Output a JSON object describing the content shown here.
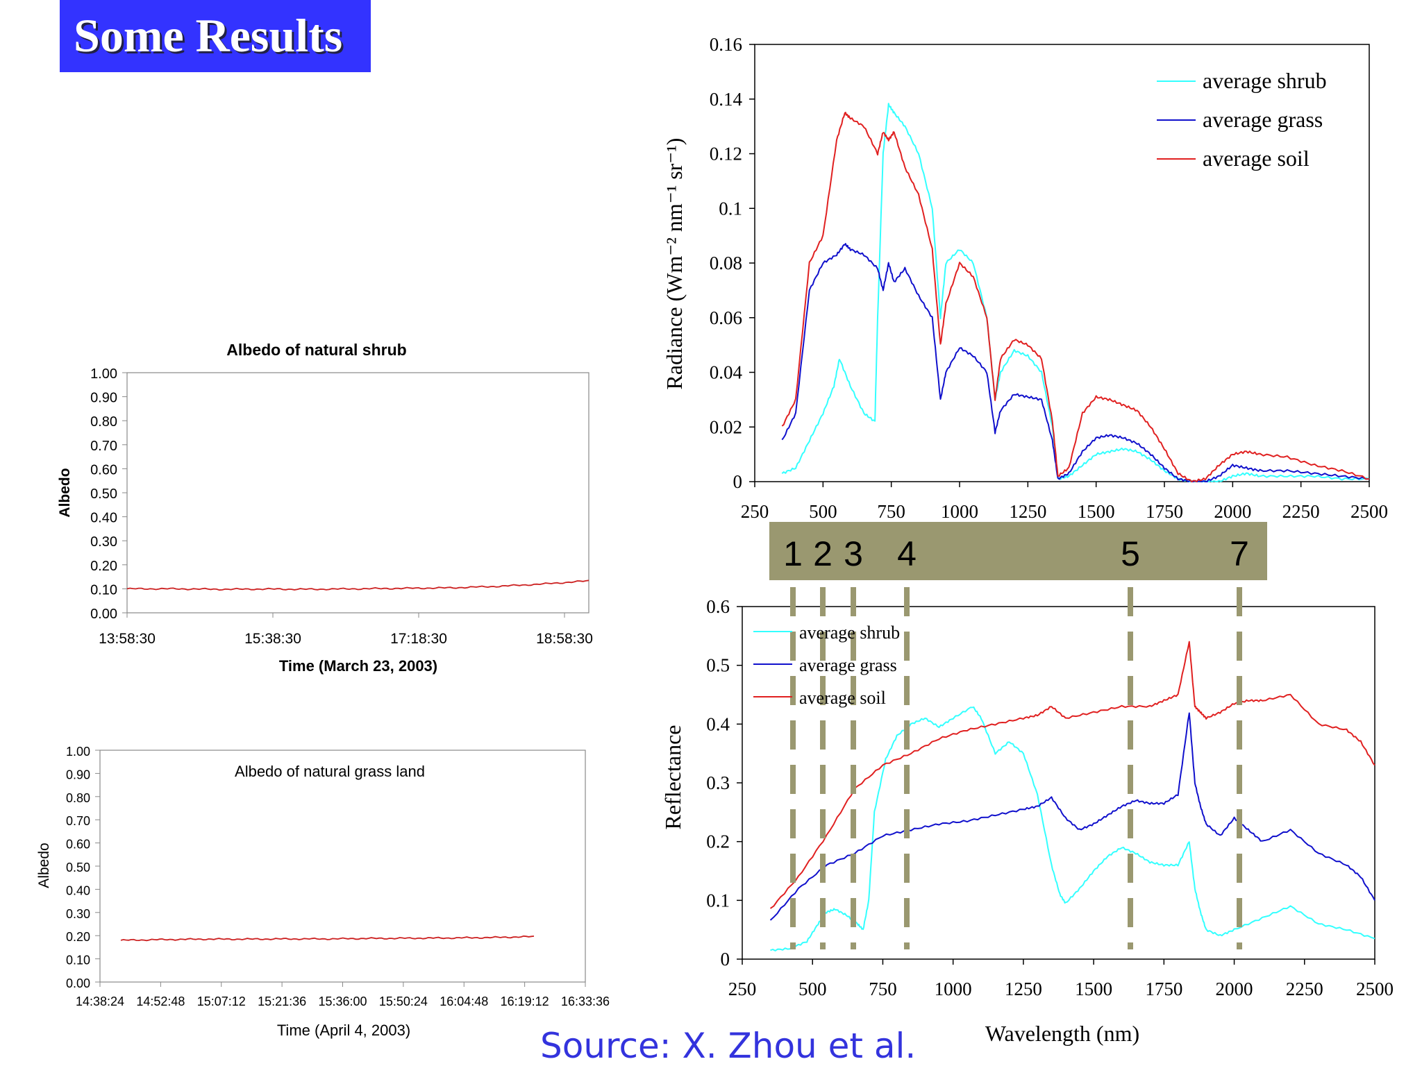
{
  "slide": {
    "title": "Some Results",
    "source": "Source: X. Zhou et al."
  },
  "colors": {
    "shrub": "#33ffff",
    "grass": "#1010cc",
    "soil": "#e02020",
    "albedo_line": "#cc2020",
    "band_bar": "#9a9870",
    "title_bg": "#3333ff"
  },
  "band_labels": [
    "1",
    "2",
    "3",
    "4",
    "5",
    "7"
  ],
  "band_centers_nm": [
    485,
    570,
    660,
    840,
    1650,
    2220
  ],
  "chart_data": [
    {
      "id": "albedo-shrub",
      "type": "line",
      "title": "Albedo of natural shrub",
      "xlabel": "Time (March 23, 2003)",
      "ylabel": "Albedo",
      "ylim": [
        0,
        1
      ],
      "yticks": [
        "1.00",
        "0.90",
        "0.80",
        "0.70",
        "0.60",
        "0.50",
        "0.40",
        "0.30",
        "0.20",
        "0.10",
        "0.00"
      ],
      "xticks": [
        "13:58:30",
        "15:38:30",
        "17:18:30",
        "18:58:30"
      ],
      "series": [
        {
          "x": [
            0.0,
            0.1,
            0.2,
            0.3,
            0.4,
            0.5,
            0.6,
            0.7,
            0.8,
            0.9,
            1.0
          ],
          "values": [
            0.1,
            0.1,
            0.098,
            0.099,
            0.098,
            0.1,
            0.102,
            0.104,
            0.11,
            0.12,
            0.133
          ]
        }
      ],
      "grid": false
    },
    {
      "id": "albedo-grass",
      "type": "line",
      "title": "Albedo of natural grass land",
      "xlabel": "Time (April 4, 2003)",
      "ylabel": "Albedo",
      "ylim": [
        0,
        1
      ],
      "yticks": [
        "1.00",
        "0.90",
        "0.80",
        "0.70",
        "0.60",
        "0.50",
        "0.40",
        "0.30",
        "0.20",
        "0.10",
        "0.00"
      ],
      "xticks": [
        "14:38:24",
        "14:52:48",
        "15:07:12",
        "15:21:36",
        "15:36:00",
        "15:50:24",
        "16:04:48",
        "16:19:12",
        "16:33:36"
      ],
      "series": [
        {
          "x": [
            0.0,
            0.1,
            0.2,
            0.3,
            0.4,
            0.5,
            0.6,
            0.7,
            0.8,
            0.9,
            1.0
          ],
          "values": [
            0.18,
            0.183,
            0.185,
            0.185,
            0.186,
            0.186,
            0.188,
            0.189,
            0.19,
            0.192,
            0.196
          ]
        }
      ],
      "grid": false
    },
    {
      "id": "radiance",
      "type": "line",
      "xlabel": "",
      "ylabel": "Radiance (Wm⁻² nm⁻¹ sr⁻¹)",
      "xlim": [
        250,
        2500
      ],
      "ylim": [
        0,
        0.16
      ],
      "xticks": [
        "250",
        "500",
        "750",
        "1000",
        "1250",
        "1500",
        "1750",
        "2000",
        "2250",
        "2500"
      ],
      "yticks": [
        "0.16",
        "0.14",
        "0.12",
        "0.1",
        "0.08",
        "0.06",
        "0.04",
        "0.02",
        "0"
      ],
      "legend_position": "top-right",
      "series": [
        {
          "name": "average shrub",
          "key": "shrub",
          "x": [
            350,
            400,
            450,
            500,
            540,
            560,
            600,
            650,
            690,
            700,
            720,
            740,
            760,
            800,
            850,
            900,
            930,
            950,
            1000,
            1050,
            1100,
            1130,
            1150,
            1200,
            1250,
            1300,
            1340,
            1360,
            1400,
            1450,
            1500,
            1550,
            1600,
            1650,
            1700,
            1750,
            1800,
            1850,
            1900,
            1950,
            2000,
            2050,
            2100,
            2200,
            2300,
            2400,
            2500
          ],
          "values": [
            0.003,
            0.005,
            0.015,
            0.025,
            0.035,
            0.045,
            0.035,
            0.025,
            0.022,
            0.06,
            0.12,
            0.138,
            0.135,
            0.13,
            0.12,
            0.1,
            0.06,
            0.08,
            0.085,
            0.08,
            0.06,
            0.03,
            0.04,
            0.048,
            0.046,
            0.04,
            0.02,
            0.001,
            0.002,
            0.006,
            0.01,
            0.011,
            0.012,
            0.011,
            0.008,
            0.004,
            0.001,
            0.0,
            0.0,
            0.0,
            0.002,
            0.003,
            0.002,
            0.002,
            0.002,
            0.001,
            0.001
          ]
        },
        {
          "name": "average grass",
          "key": "grass",
          "x": [
            350,
            400,
            450,
            500,
            550,
            580,
            600,
            650,
            700,
            720,
            740,
            760,
            800,
            850,
            900,
            930,
            950,
            1000,
            1050,
            1100,
            1130,
            1150,
            1200,
            1250,
            1300,
            1340,
            1360,
            1400,
            1450,
            1500,
            1550,
            1600,
            1650,
            1700,
            1750,
            1800,
            1850,
            1900,
            1950,
            2000,
            2050,
            2100,
            2200,
            2300,
            2400,
            2500
          ],
          "values": [
            0.015,
            0.025,
            0.07,
            0.08,
            0.083,
            0.087,
            0.085,
            0.083,
            0.078,
            0.07,
            0.08,
            0.073,
            0.078,
            0.068,
            0.06,
            0.03,
            0.04,
            0.049,
            0.046,
            0.04,
            0.018,
            0.026,
            0.032,
            0.031,
            0.03,
            0.015,
            0.001,
            0.003,
            0.011,
            0.016,
            0.017,
            0.016,
            0.014,
            0.01,
            0.005,
            0.001,
            0.0,
            0.0,
            0.002,
            0.006,
            0.005,
            0.004,
            0.004,
            0.003,
            0.002,
            0.001
          ]
        },
        {
          "name": "average soil",
          "key": "soil",
          "x": [
            350,
            400,
            450,
            500,
            550,
            580,
            600,
            650,
            700,
            720,
            740,
            760,
            800,
            850,
            900,
            930,
            950,
            1000,
            1050,
            1100,
            1130,
            1150,
            1200,
            1250,
            1300,
            1340,
            1360,
            1400,
            1450,
            1500,
            1550,
            1600,
            1650,
            1700,
            1750,
            1800,
            1850,
            1900,
            1950,
            2000,
            2050,
            2100,
            2200,
            2300,
            2400,
            2500
          ],
          "values": [
            0.02,
            0.03,
            0.08,
            0.09,
            0.125,
            0.135,
            0.133,
            0.13,
            0.12,
            0.128,
            0.125,
            0.128,
            0.115,
            0.105,
            0.085,
            0.05,
            0.065,
            0.08,
            0.075,
            0.06,
            0.03,
            0.045,
            0.052,
            0.05,
            0.045,
            0.022,
            0.002,
            0.005,
            0.025,
            0.031,
            0.03,
            0.028,
            0.026,
            0.02,
            0.012,
            0.003,
            0.0,
            0.001,
            0.006,
            0.01,
            0.011,
            0.01,
            0.009,
            0.006,
            0.004,
            0.001
          ]
        }
      ]
    },
    {
      "id": "reflectance",
      "type": "line",
      "xlabel": "Wavelength (nm)",
      "ylabel": "Reflectance",
      "xlim": [
        250,
        2500
      ],
      "ylim": [
        0,
        0.6
      ],
      "xticks": [
        "250",
        "500",
        "750",
        "1000",
        "1250",
        "1500",
        "1750",
        "2000",
        "2250",
        "2500"
      ],
      "yticks": [
        "0.6",
        "0.5",
        "0.4",
        "0.3",
        "0.2",
        "0.1",
        "0"
      ],
      "legend_position": "top-left",
      "series": [
        {
          "name": "average shrub",
          "key": "shrub",
          "x": [
            350,
            420,
            480,
            520,
            550,
            580,
            620,
            660,
            680,
            700,
            720,
            760,
            800,
            850,
            900,
            950,
            1000,
            1070,
            1100,
            1150,
            1200,
            1250,
            1300,
            1350,
            1380,
            1400,
            1450,
            1500,
            1550,
            1600,
            1650,
            1700,
            1750,
            1800,
            1840,
            1860,
            1880,
            1900,
            1950,
            2000,
            2100,
            2200,
            2300,
            2400,
            2500
          ],
          "values": [
            0.015,
            0.018,
            0.03,
            0.06,
            0.08,
            0.085,
            0.075,
            0.06,
            0.05,
            0.1,
            0.25,
            0.34,
            0.38,
            0.4,
            0.41,
            0.395,
            0.41,
            0.43,
            0.41,
            0.35,
            0.37,
            0.35,
            0.28,
            0.16,
            0.11,
            0.095,
            0.12,
            0.15,
            0.175,
            0.19,
            0.18,
            0.165,
            0.16,
            0.16,
            0.2,
            0.12,
            0.08,
            0.05,
            0.04,
            0.05,
            0.07,
            0.09,
            0.06,
            0.05,
            0.035
          ]
        },
        {
          "name": "average grass",
          "key": "grass",
          "x": [
            350,
            450,
            550,
            650,
            750,
            850,
            950,
            1050,
            1150,
            1250,
            1300,
            1350,
            1400,
            1450,
            1500,
            1550,
            1600,
            1650,
            1700,
            1750,
            1800,
            1840,
            1860,
            1880,
            1900,
            1950,
            2000,
            2050,
            2100,
            2200,
            2300,
            2400,
            2450,
            2500
          ],
          "values": [
            0.065,
            0.12,
            0.16,
            0.18,
            0.21,
            0.22,
            0.23,
            0.235,
            0.245,
            0.255,
            0.26,
            0.275,
            0.24,
            0.22,
            0.23,
            0.245,
            0.26,
            0.27,
            0.265,
            0.265,
            0.28,
            0.42,
            0.3,
            0.26,
            0.23,
            0.21,
            0.24,
            0.22,
            0.2,
            0.22,
            0.18,
            0.16,
            0.14,
            0.1
          ]
        },
        {
          "name": "average soil",
          "key": "soil",
          "x": [
            350,
            450,
            550,
            650,
            750,
            850,
            950,
            1050,
            1150,
            1250,
            1300,
            1350,
            1400,
            1500,
            1600,
            1700,
            1750,
            1800,
            1840,
            1860,
            1880,
            1900,
            1950,
            2000,
            2050,
            2100,
            2200,
            2300,
            2400,
            2450,
            2500
          ],
          "values": [
            0.085,
            0.14,
            0.21,
            0.29,
            0.33,
            0.35,
            0.375,
            0.39,
            0.4,
            0.41,
            0.415,
            0.43,
            0.41,
            0.42,
            0.43,
            0.43,
            0.44,
            0.45,
            0.54,
            0.43,
            0.42,
            0.41,
            0.42,
            0.435,
            0.44,
            0.44,
            0.45,
            0.4,
            0.39,
            0.37,
            0.33
          ]
        }
      ]
    }
  ]
}
